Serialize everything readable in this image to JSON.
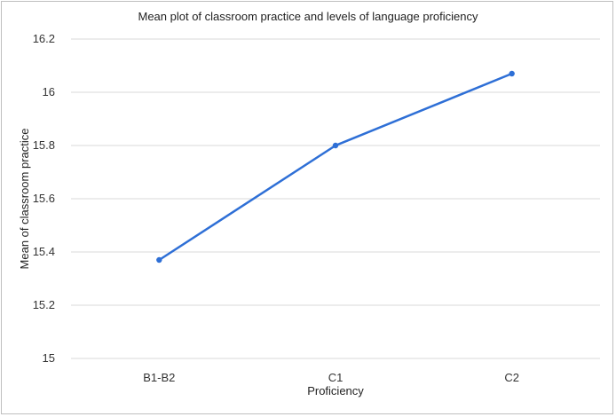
{
  "chart_data": {
    "type": "line",
    "title": "Mean plot of classroom practice and levels of language proficiency",
    "xlabel": "Proficiency",
    "ylabel": "Mean of classroom practice",
    "categories": [
      "B1-B2",
      "C1",
      "C2"
    ],
    "series": [
      {
        "values": [
          15.37,
          15.8,
          16.07
        ]
      }
    ],
    "ylim": [
      15,
      16.2
    ],
    "yticks": [
      "15",
      "15.2",
      "15.4",
      "15.6",
      "15.8",
      "16",
      "16.2"
    ],
    "grid": "horizontal",
    "legend": "none",
    "colors": {
      "line": "#2e6fd6",
      "grid": "#d9d9d9"
    }
  }
}
